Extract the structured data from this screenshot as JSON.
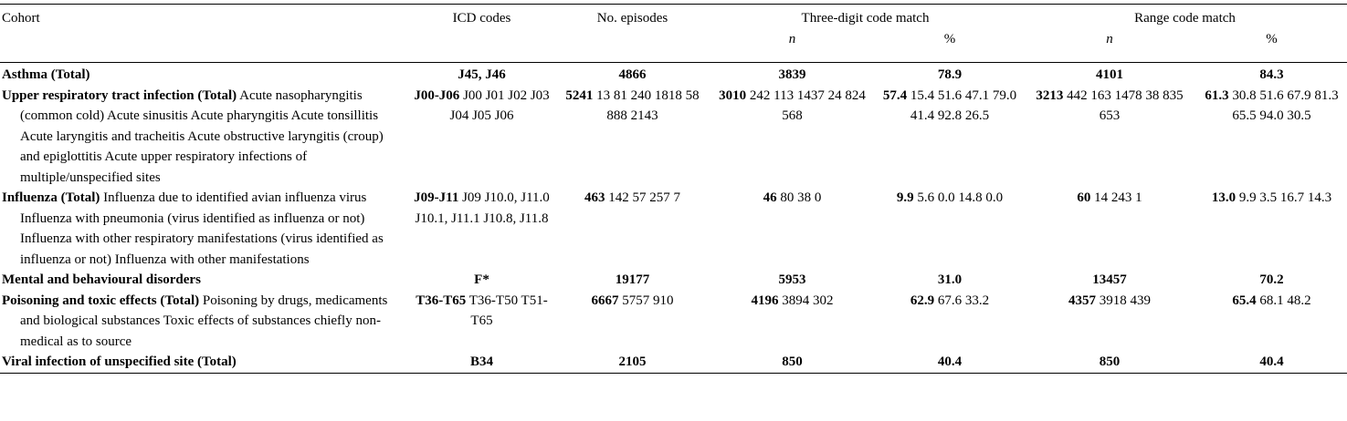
{
  "headers": {
    "cohort": "Cohort",
    "icd": "ICD codes",
    "episodes": "No. episodes",
    "three_digit": "Three-digit code match",
    "range": "Range code match",
    "n": "n",
    "pct": "%"
  },
  "rows": [
    {
      "cohort_bold": "Asthma (Total)",
      "cohort_rest": "",
      "icd_bold": "J45, J46",
      "icd_rest": "",
      "episodes_bold": "4866",
      "episodes_rest": "",
      "td_n_bold": "3839",
      "td_n_rest": "",
      "td_pct_bold": "78.9",
      "td_pct_rest": "",
      "rc_n_bold": "4101",
      "rc_n_rest": "",
      "rc_pct_bold": "84.3",
      "rc_pct_rest": ""
    },
    {
      "cohort_bold": "Upper respiratory tract infection (Total)",
      "cohort_rest": " Acute nasopharyngitis (common cold) Acute sinusitis Acute pharyngitis Acute tonsillitis Acute laryngitis and tracheitis Acute obstructive laryngitis (croup) and epiglottitis Acute upper respiratory infections of multiple/unspecified sites",
      "icd_bold": "J00-J06",
      "icd_rest": " J00 J01 J02 J03 J04 J05 J06",
      "episodes_bold": "5241",
      "episodes_rest": " 13 81 240 1818 58 888 2143",
      "td_n_bold": "3010",
      "td_n_rest": " 242 113 1437 24 824 568",
      "td_pct_bold": "57.4",
      "td_pct_rest": " 15.4 51.6 47.1 79.0 41.4 92.8 26.5",
      "rc_n_bold": "3213",
      "rc_n_rest": " 442 163 1478 38 835 653",
      "rc_pct_bold": "61.3",
      "rc_pct_rest": " 30.8 51.6 67.9 81.3 65.5 94.0 30.5"
    },
    {
      "cohort_bold": "Influenza (Total)",
      "cohort_rest": " Influenza due to identified avian influenza virus Influenza with pneumonia (virus identified as influenza or not) Influenza with other respiratory manifestations (virus identified as influenza or not) Influenza with other manifestations",
      "icd_bold": "J09-J11",
      "icd_rest": " J09 J10.0, J11.0 J10.1, J11.1 J10.8, J11.8",
      "episodes_bold": "463",
      "episodes_rest": " 142 57 257 7",
      "td_n_bold": "46",
      "td_n_rest": " 80 38 0",
      "td_pct_bold": "9.9",
      "td_pct_rest": " 5.6 0.0 14.8 0.0",
      "rc_n_bold": "60",
      "rc_n_rest": " 14 243 1",
      "rc_pct_bold": "13.0",
      "rc_pct_rest": " 9.9 3.5 16.7 14.3"
    },
    {
      "cohort_bold": "Mental and behavioural disorders",
      "cohort_rest": "",
      "icd_bold": "F*",
      "icd_rest": "",
      "episodes_bold": "19177",
      "episodes_rest": "",
      "td_n_bold": "5953",
      "td_n_rest": "",
      "td_pct_bold": "31.0",
      "td_pct_rest": "",
      "rc_n_bold": "13457",
      "rc_n_rest": "",
      "rc_pct_bold": "70.2",
      "rc_pct_rest": ""
    },
    {
      "cohort_bold": "Poisoning and toxic effects (Total)",
      "cohort_rest": " Poisoning by drugs, medicaments and biological substances Toxic effects of substances chiefly non-medical as to source",
      "icd_bold": "T36-T65",
      "icd_rest": " T36-T50 T51-T65",
      "episodes_bold": "6667",
      "episodes_rest": " 5757 910",
      "td_n_bold": "4196",
      "td_n_rest": " 3894 302",
      "td_pct_bold": "62.9",
      "td_pct_rest": " 67.6 33.2",
      "rc_n_bold": "4357",
      "rc_n_rest": " 3918 439",
      "rc_pct_bold": "65.4",
      "rc_pct_rest": " 68.1 48.2"
    },
    {
      "cohort_bold": "Viral infection of unspecified site (Total)",
      "cohort_rest": "",
      "icd_bold": "B34",
      "icd_rest": "",
      "episodes_bold": "2105",
      "episodes_rest": "",
      "td_n_bold": "850",
      "td_n_rest": "",
      "td_pct_bold": "40.4",
      "td_pct_rest": "",
      "rc_n_bold": "850",
      "rc_n_rest": "",
      "rc_pct_bold": "40.4",
      "rc_pct_rest": ""
    }
  ]
}
